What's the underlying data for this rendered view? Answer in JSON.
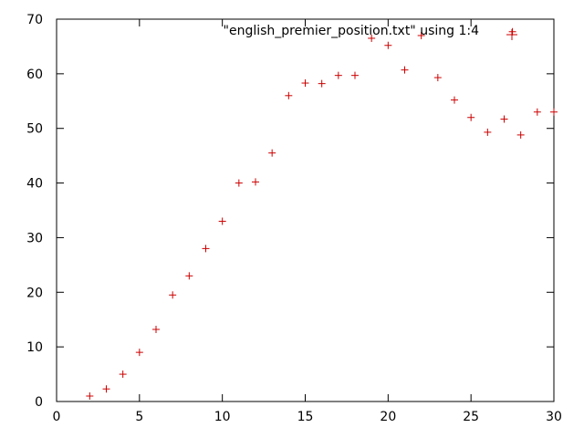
{
  "chart_data": {
    "type": "scatter",
    "title": "",
    "xlabel": "",
    "ylabel": "",
    "xlim": [
      0,
      30
    ],
    "ylim": [
      0,
      70
    ],
    "x_ticks": [
      "0",
      "5",
      "10",
      "15",
      "20",
      "25",
      "30"
    ],
    "y_ticks": [
      "0",
      "10",
      "20",
      "30",
      "40",
      "50",
      "60",
      "70"
    ],
    "grid": false,
    "legend_position": "top-right",
    "marker": "plus",
    "series": [
      {
        "name": "\"english_premier_position.txt\" using 1:4",
        "color": "#cc0000",
        "points": [
          [
            2,
            1.0
          ],
          [
            3,
            2.3
          ],
          [
            4,
            5.0
          ],
          [
            5,
            9.0
          ],
          [
            6,
            13.2
          ],
          [
            7,
            19.5
          ],
          [
            8,
            23.0
          ],
          [
            9,
            28.0
          ],
          [
            10,
            33.0
          ],
          [
            11,
            40.0
          ],
          [
            12,
            40.2
          ],
          [
            13,
            45.5
          ],
          [
            14,
            56.0
          ],
          [
            15,
            58.3
          ],
          [
            16,
            58.2
          ],
          [
            17,
            59.7
          ],
          [
            18,
            59.7
          ],
          [
            19,
            66.5
          ],
          [
            20,
            65.2
          ],
          [
            21,
            60.7
          ],
          [
            22,
            67.0
          ],
          [
            23,
            59.3
          ],
          [
            24,
            55.2
          ],
          [
            25,
            52.0
          ],
          [
            26,
            49.3
          ],
          [
            27,
            51.7
          ],
          [
            27.5,
            67.7
          ],
          [
            28,
            48.8
          ],
          [
            29,
            53.0
          ],
          [
            30,
            53.0
          ]
        ]
      }
    ]
  }
}
